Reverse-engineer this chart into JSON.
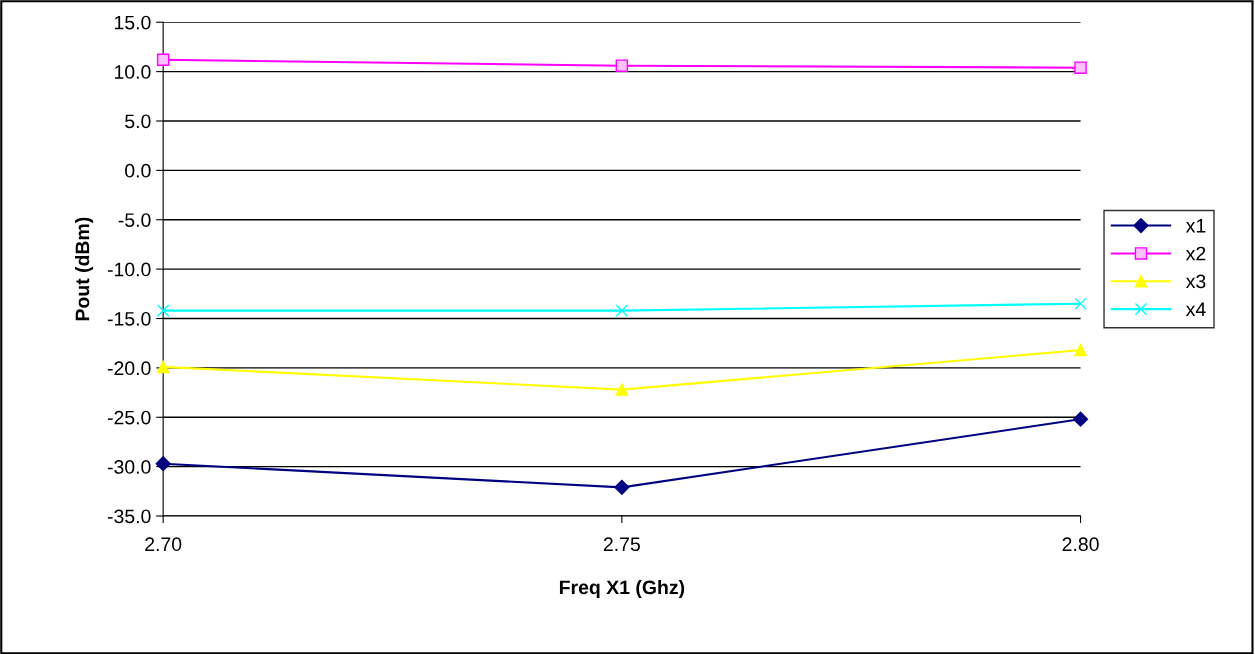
{
  "chart_data": {
    "type": "line",
    "xlabel": "Freq X1 (Ghz)",
    "ylabel": "Pout (dBm)",
    "x": [
      2.7,
      2.75,
      2.8
    ],
    "series": [
      {
        "name": "x1",
        "color": "#000080",
        "marker": "diamond",
        "values": [
          -29.7,
          -32.1,
          -25.2
        ]
      },
      {
        "name": "x2",
        "color": "#ff00ff",
        "marker": "square",
        "values": [
          11.2,
          10.6,
          10.4
        ]
      },
      {
        "name": "x3",
        "color": "#ffff00",
        "marker": "triangle",
        "values": [
          -19.9,
          -22.2,
          -18.2
        ]
      },
      {
        "name": "x4",
        "color": "#00ffff",
        "marker": "cross",
        "values": [
          -14.2,
          -14.2,
          -13.5
        ]
      }
    ],
    "xlim": [
      2.7,
      2.8
    ],
    "xticks": [
      {
        "value": 2.7,
        "label": "2.70"
      },
      {
        "value": 2.75,
        "label": "2.75"
      },
      {
        "value": 2.8,
        "label": "2.80"
      }
    ],
    "ylim": [
      -35,
      15
    ],
    "yticks": [
      {
        "value": -35,
        "label": "-35.0"
      },
      {
        "value": -30,
        "label": "-30.0"
      },
      {
        "value": -25,
        "label": "-25.0"
      },
      {
        "value": -20,
        "label": "-20.0"
      },
      {
        "value": -15,
        "label": "-15.0"
      },
      {
        "value": -10,
        "label": "-10.0"
      },
      {
        "value": -5,
        "label": "-5.0"
      },
      {
        "value": 0,
        "label": "0.0"
      },
      {
        "value": 5,
        "label": "5.0"
      },
      {
        "value": 10,
        "label": "10.0"
      },
      {
        "value": 15,
        "label": "15.0"
      }
    ],
    "grid": "y",
    "legend": "right",
    "line_style": "solid"
  }
}
